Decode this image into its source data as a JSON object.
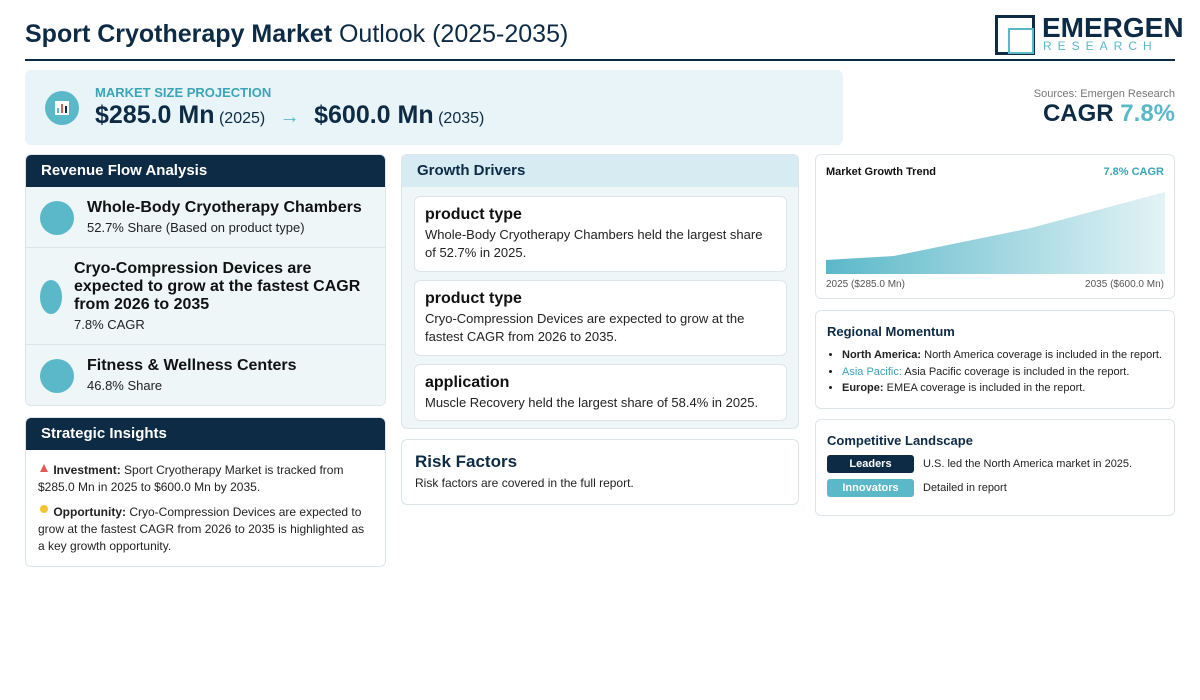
{
  "header": {
    "title_bold": "Sport Cryotherapy Market",
    "title_rest": "Outlook (2025-2035)",
    "logo_main": "EMERGEN",
    "logo_sub": "RESEARCH"
  },
  "projection": {
    "label": "MARKET SIZE PROJECTION",
    "start_value": "$285.0 Mn",
    "start_year": "(2025)",
    "arrow": "→",
    "end_value": "$600.0 Mn",
    "end_year": "(2035)"
  },
  "summary": {
    "sources": "Sources: Emergen Research",
    "cagr_label": "CAGR",
    "cagr_value": "7.8%"
  },
  "revenue_flow": {
    "title": "Revenue Flow Analysis",
    "items": [
      {
        "title": "Whole-Body Cryotherapy Chambers",
        "detail": "52.7% Share (Based on product type)"
      },
      {
        "title": "Cryo-Compression Devices are expected to grow at the fastest CAGR from 2026 to 2035",
        "detail": "7.8% CAGR"
      },
      {
        "title": "Fitness & Wellness Centers",
        "detail": "46.8% Share"
      }
    ]
  },
  "strategic_insights": {
    "title": "Strategic Insights",
    "items": [
      {
        "label": "Investment:",
        "text": "Sport Cryotherapy Market is tracked from $285.0 Mn in 2025 to $600.0 Mn by 2035."
      },
      {
        "label": "Opportunity:",
        "text": "Cryo-Compression Devices are expected to grow at the fastest CAGR from 2026 to 2035 is highlighted as a key growth opportunity."
      }
    ]
  },
  "growth_drivers": {
    "title": "Growth Drivers",
    "items": [
      {
        "heading": "product type",
        "text": "Whole-Body Cryotherapy Chambers held the largest share of 52.7% in 2025."
      },
      {
        "heading": "product type",
        "text": "Cryo-Compression Devices are expected to grow at the fastest CAGR from 2026 to 2035."
      },
      {
        "heading": "application",
        "text": "Muscle Recovery held the largest share of 58.4% in 2025."
      }
    ]
  },
  "risk_factors": {
    "title": "Risk Factors",
    "text": "Risk factors are covered in the full report."
  },
  "trend": {
    "title": "Market Growth Trend",
    "badge": "7.8% CAGR",
    "start_label": "2025 ($285.0 Mn)",
    "end_label": "2035 ($600.0 Mn)"
  },
  "regional": {
    "title": "Regional Momentum",
    "items": [
      {
        "region": "North America:",
        "text": "North America coverage is included in the report."
      },
      {
        "region": "Asia Pacific:",
        "text": "Asia Pacific coverage is included in the report."
      },
      {
        "region": "Europe:",
        "text": "EMEA coverage is included in the report."
      }
    ]
  },
  "competitive": {
    "title": "Competitive Landscape",
    "items": [
      {
        "badge": "Leaders",
        "text": "U.S. led the North America market in 2025."
      },
      {
        "badge": "Innovators",
        "text": "Detailed in report"
      }
    ]
  }
}
